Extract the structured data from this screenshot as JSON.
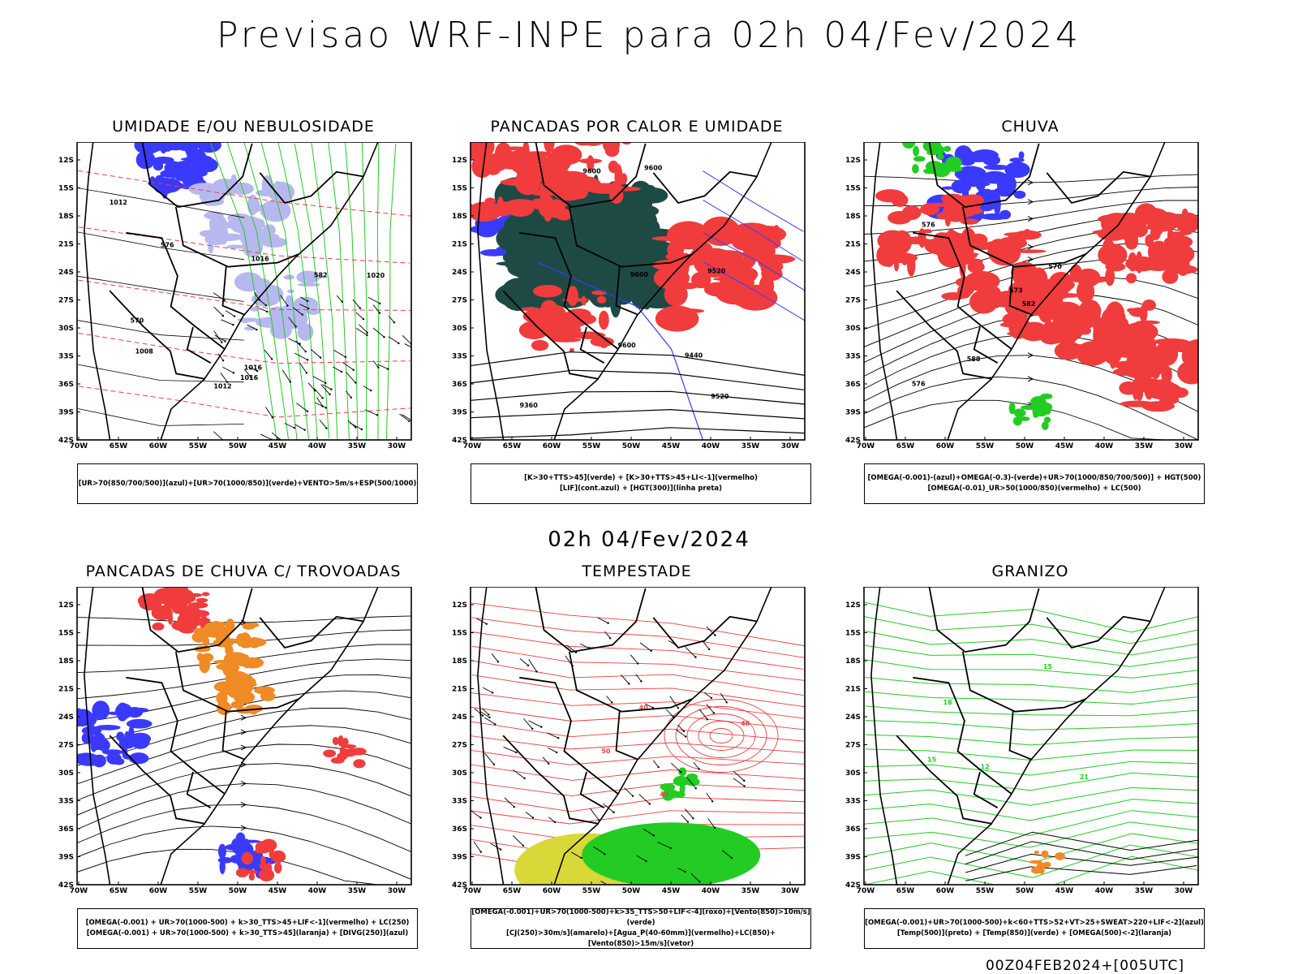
{
  "main_title": "Previsao WRF-INPE  para 02h 04/Fev/2024",
  "mid_title": "02h 04/Fev/2024",
  "footer": "00Z04FEB2024+[005UTC]",
  "y_ticks": [
    "12S",
    "15S",
    "18S",
    "21S",
    "24S",
    "27S",
    "30S",
    "33S",
    "36S",
    "39S",
    "42S"
  ],
  "x_ticks": [
    "70W",
    "65W",
    "60W",
    "55W",
    "50W",
    "45W",
    "40W",
    "35W",
    "30W"
  ],
  "panels": [
    {
      "title": "UMIDADE E/OU NEBULOSIDADE",
      "legend": [
        "[UR>70(850/700/500)](azul)+[UR>70(1000/850)](verde)+VENTO>5m/s+ESP(500/1000)"
      ],
      "labels": [
        "1012",
        "1016",
        "1016",
        "1012",
        "1020",
        "1008",
        "1016",
        "570",
        "582",
        "576"
      ]
    },
    {
      "title": "PANCADAS POR CALOR E UMIDADE",
      "legend": [
        "[K>30+TTS>45](verde) + [K>30+TTS>45+LI<-1](vermelho)",
        "[LIF](cont.azul) + [HGT(300)](linha preta)"
      ],
      "labels": [
        "9600",
        "9600",
        "9600",
        "9600",
        "9520",
        "9440",
        "9360",
        "9520"
      ]
    },
    {
      "title": "CHUVA",
      "legend": [
        "[OMEGA(-0.001)-(azul)+OMEGA(-0.3)-(verde)+UR>70(1000/850/700/500)] + HGT(500)",
        "[OMEGA(-0.01)_UR>50(1000/850)(vermelho) + LC(500)"
      ],
      "labels": [
        "582",
        "576",
        "573",
        "576",
        "570",
        "588"
      ]
    },
    {
      "title": "PANCADAS DE CHUVA C/ TROVOADAS",
      "legend": [
        "[OMEGA(-0.001) + UR>70(1000-500) + k>30_TTS>45+LIF<-1](vermelho) + LC(250)",
        "[OMEGA(-0.001) + UR>70(1000-500) + k>30_TTS>45](laranja) + [DIVG(250)](azul)"
      ],
      "labels": []
    },
    {
      "title": "TEMPESTADE",
      "legend": [
        "[OMEGA(-0.001)+UR>70(1000-500)+k>35_TTS>50+LIF<-4](roxo)+[Vento(850)>10m/s](verde)",
        "[CJ(250)>30m/s](amarelo)+[Agua_P(40-60mm)](vermelho)+LC(850)+[Vento(850)>15m/s](vetor)"
      ],
      "labels": [
        "40",
        "40",
        "50",
        "40"
      ]
    },
    {
      "title": "GRANIZO",
      "legend": [
        "[OMEGA(-0.001)+UR>70(1000-500)+k<60+TTS>52+VT>25+SWEAT>220+LIF<-2](azul)",
        "[Temp(500)](preto) + [Temp(850)](verde) + [OMEGA(500)<-2](laranja)"
      ],
      "labels": [
        "15",
        "21",
        "12",
        "15",
        "18"
      ]
    }
  ],
  "colors": {
    "blue": "#3a3aff",
    "lightblue": "#b8b8f0",
    "green": "#22cc22",
    "red": "#f03c3c",
    "darkteal": "#1e4a46",
    "orange": "#f08a24",
    "yellow": "#d8d838",
    "black": "#000000"
  }
}
